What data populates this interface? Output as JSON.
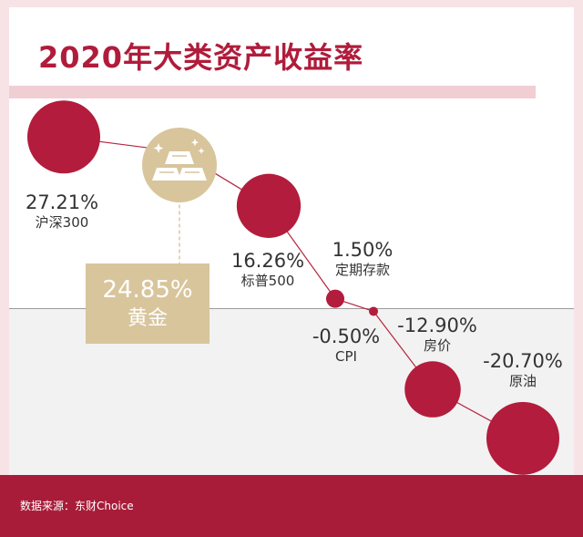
{
  "title": "2020年大类资产收益率",
  "source": "数据来源：东财Choice",
  "colors": {
    "accent": "#b01c3b",
    "gold": "#d8c59c",
    "footer": "#a81c39"
  },
  "gold_icon": "gold-bars-icon",
  "chart_data": {
    "type": "scatter",
    "title": "2020年大类资产收益率",
    "unit": "%",
    "categories": [
      "沪深300",
      "黄金",
      "标普500",
      "定期存款",
      "CPI",
      "房价",
      "原油"
    ],
    "values": [
      27.21,
      24.85,
      16.26,
      1.5,
      -0.5,
      -12.9,
      -20.7
    ],
    "value_labels": [
      "27.21%",
      "24.85%",
      "16.26%",
      "1.50%",
      "-0.50%",
      "-12.90%",
      "-20.70%"
    ],
    "baseline": 0,
    "highlight": "黄金"
  }
}
